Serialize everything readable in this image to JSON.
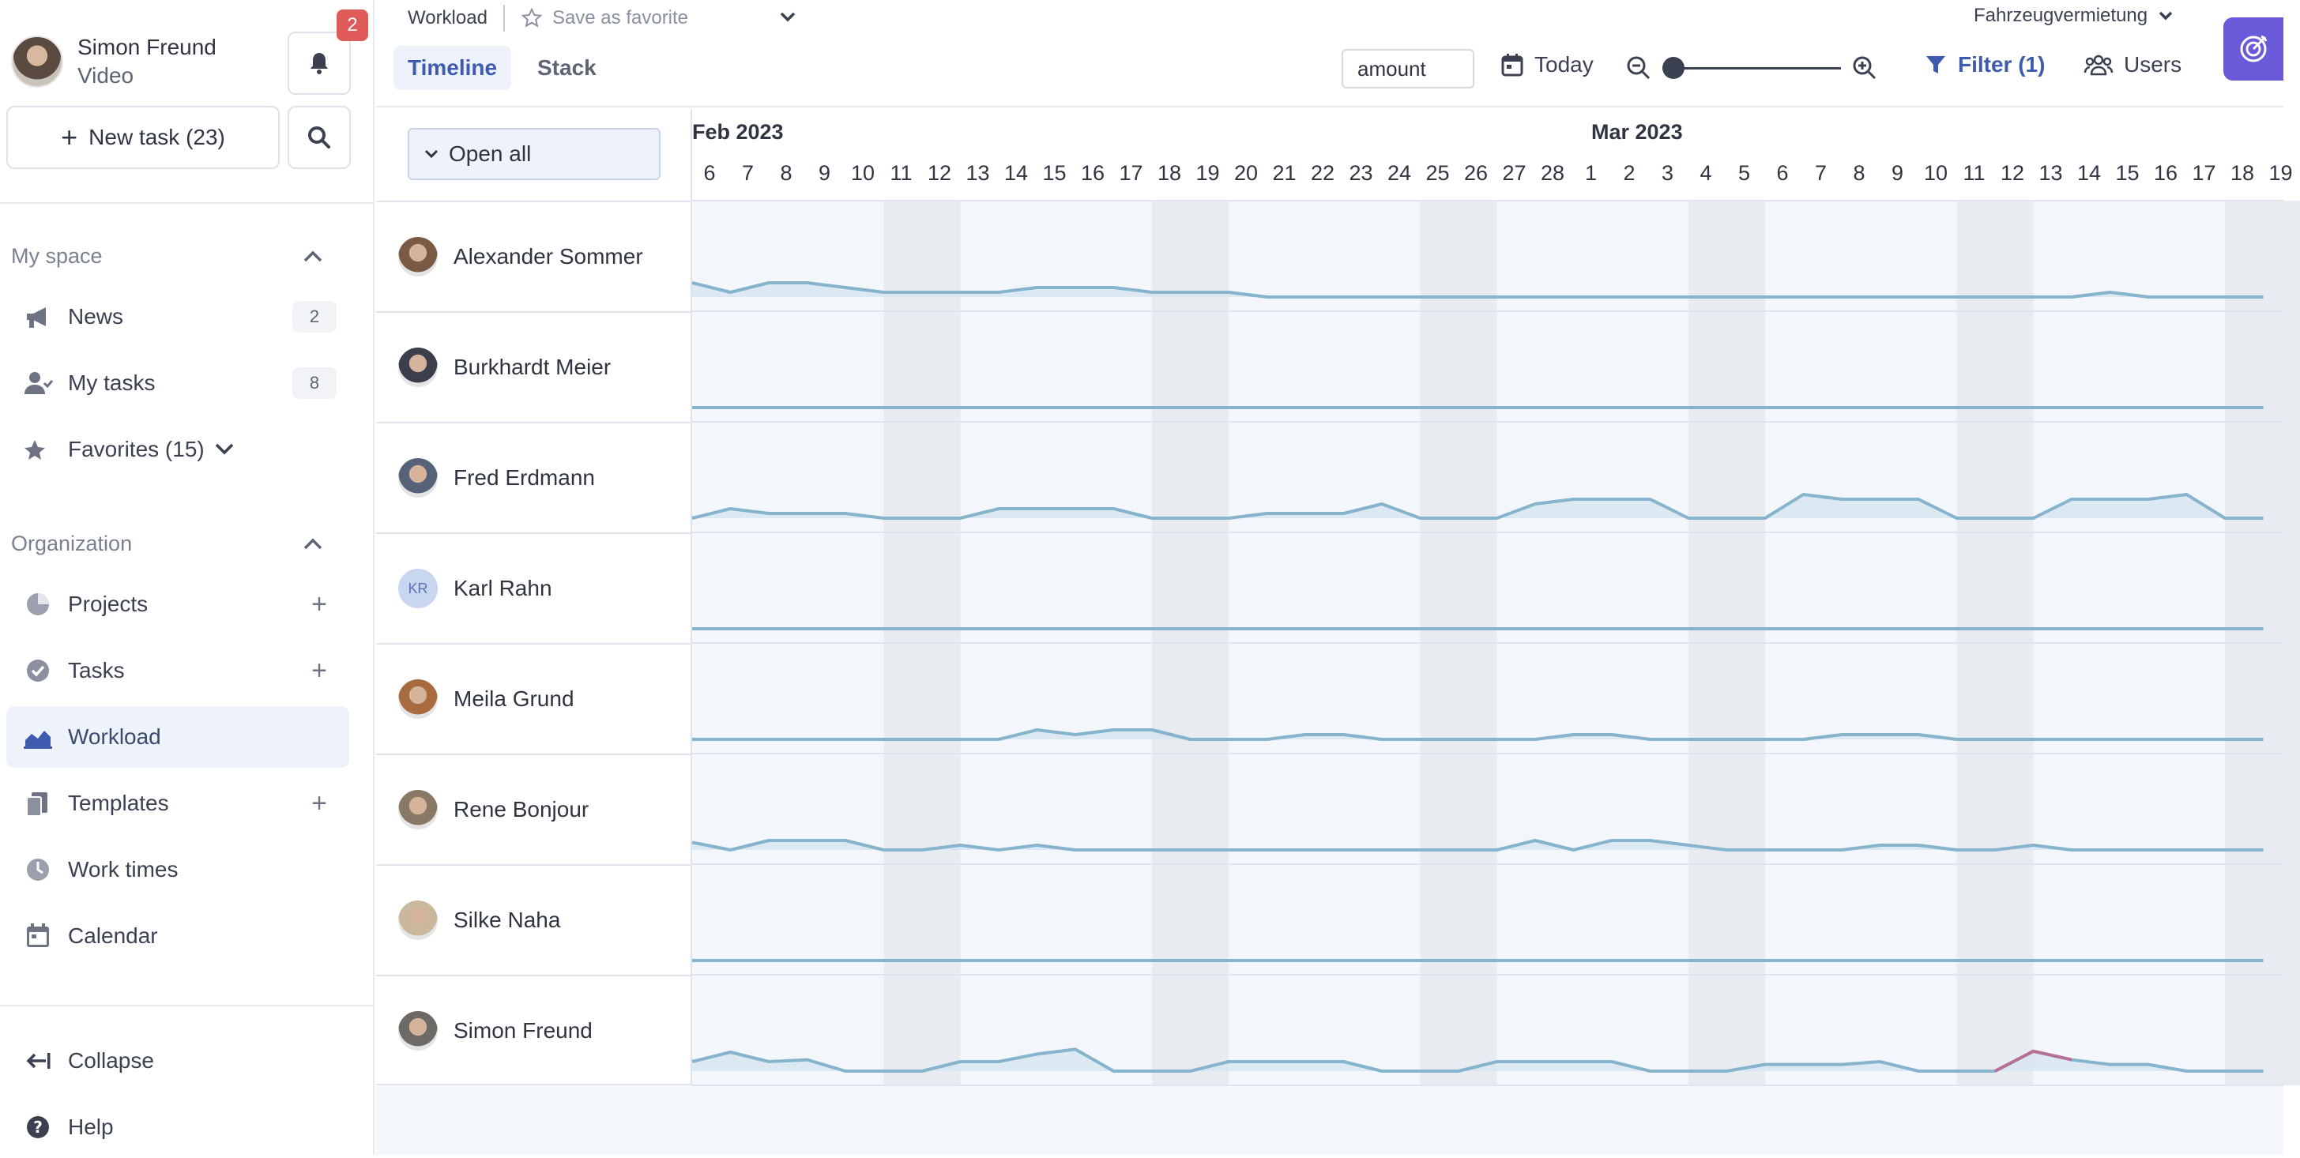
{
  "user": {
    "name": "Simon Freund",
    "subtitle": "Video",
    "notifications": "2"
  },
  "sidebar": {
    "new_task": "New task (23)",
    "my_space": {
      "title": "My space",
      "items": [
        {
          "label": "News",
          "count": "2",
          "icon": "megaphone-icon"
        },
        {
          "label": "My tasks",
          "count": "8",
          "icon": "user-check-icon"
        },
        {
          "label": "Favorites (15)",
          "icon": "star-icon"
        }
      ]
    },
    "organization": {
      "title": "Organization",
      "items": [
        {
          "label": "Projects",
          "icon": "pie-chart-icon",
          "addable": true
        },
        {
          "label": "Tasks",
          "icon": "check-circle-icon",
          "addable": true
        },
        {
          "label": "Workload",
          "icon": "area-chart-icon",
          "active": true
        },
        {
          "label": "Templates",
          "icon": "copy-icon",
          "addable": true
        },
        {
          "label": "Work times",
          "icon": "clock-icon"
        },
        {
          "label": "Calendar",
          "icon": "calendar-icon"
        }
      ]
    },
    "footer": [
      {
        "label": "Collapse",
        "icon": "collapse-arrow-icon"
      },
      {
        "label": "Help",
        "icon": "help-icon"
      }
    ]
  },
  "topbar": {
    "breadcrumb": "Workload",
    "favorite": "Save as favorite",
    "tabs": [
      {
        "label": "Timeline",
        "active": true
      },
      {
        "label": "Stack",
        "active": false
      }
    ],
    "company": "Fahrzeugvermietung",
    "amount_value": "amount",
    "today": "Today",
    "zoom_level": 0,
    "filter": "Filter (1)",
    "users": "Users"
  },
  "grid": {
    "open_all": "Open all",
    "months": [
      "Feb 2023",
      "Mar 2023"
    ],
    "days": [
      "6",
      "7",
      "8",
      "9",
      "10",
      "11",
      "12",
      "13",
      "14",
      "15",
      "16",
      "17",
      "18",
      "19",
      "20",
      "21",
      "22",
      "23",
      "24",
      "25",
      "26",
      "27",
      "28",
      "1",
      "2",
      "3",
      "4",
      "5",
      "6",
      "7",
      "8",
      "9",
      "10",
      "11",
      "12",
      "13",
      "14",
      "15",
      "16",
      "17",
      "18",
      "19"
    ],
    "weekend_indices": [
      5,
      6,
      12,
      13,
      19,
      20,
      26,
      27,
      33,
      34,
      40,
      41
    ],
    "rows": [
      {
        "name": "Alexander Sommer",
        "avatar": "photo",
        "load": [
          1.5,
          0.5,
          1.5,
          1.5,
          1,
          0.5,
          0.5,
          0.5,
          0.5,
          1,
          1,
          1,
          0.5,
          0.5,
          0.5,
          0,
          0,
          0,
          0,
          0,
          0,
          0,
          0,
          0,
          0,
          0,
          0,
          0,
          0,
          0,
          0,
          0,
          0,
          0,
          0,
          0,
          0,
          0.5,
          0,
          0,
          0,
          0
        ]
      },
      {
        "name": "Burkhardt Meier",
        "avatar": "photo",
        "load": [
          0,
          0,
          0,
          0,
          0,
          0,
          0,
          0,
          0,
          0,
          0,
          0,
          0,
          0,
          0,
          0,
          0,
          0,
          0,
          0,
          0,
          0,
          0,
          0,
          0,
          0,
          0,
          0,
          0,
          0,
          0,
          0,
          0,
          0,
          0,
          0,
          0,
          0,
          0,
          0,
          0,
          0
        ]
      },
      {
        "name": "Fred Erdmann",
        "avatar": "photo",
        "load": [
          0,
          1,
          0.5,
          0.5,
          0.5,
          0,
          0,
          0,
          1,
          1,
          1,
          1,
          0,
          0,
          0,
          0.5,
          0.5,
          0.5,
          1.5,
          0,
          0,
          0,
          1.5,
          2,
          2,
          2,
          0,
          0,
          0,
          2.5,
          2,
          2,
          2,
          0,
          0,
          0,
          2,
          2,
          2,
          2.5,
          0,
          0
        ]
      },
      {
        "name": "Karl Rahn",
        "avatar": "initials",
        "initials": "KR",
        "load": [
          0,
          0,
          0,
          0,
          0,
          0,
          0,
          0,
          0,
          0,
          0,
          0,
          0,
          0,
          0,
          0,
          0,
          0,
          0,
          0,
          0,
          0,
          0,
          0,
          0,
          0,
          0,
          0,
          0,
          0,
          0,
          0,
          0,
          0,
          0,
          0,
          0,
          0,
          0,
          0,
          0,
          0
        ]
      },
      {
        "name": "Meila Grund",
        "avatar": "photo",
        "load": [
          0,
          0,
          0,
          0,
          0,
          0,
          0,
          0,
          0,
          1,
          0.5,
          1,
          1,
          0,
          0,
          0,
          0.5,
          0.5,
          0,
          0,
          0,
          0,
          0,
          0.5,
          0.5,
          0,
          0,
          0,
          0,
          0,
          0.5,
          0.5,
          0.5,
          0,
          0,
          0,
          0,
          0,
          0,
          0,
          0,
          0
        ]
      },
      {
        "name": "Rene Bonjour",
        "avatar": "photo",
        "load": [
          0.8,
          0,
          1,
          1,
          1,
          0,
          0,
          0.5,
          0,
          0.5,
          0,
          0,
          0,
          0,
          0,
          0,
          0,
          0,
          0,
          0,
          0,
          0,
          1,
          0,
          1,
          1,
          0.5,
          0,
          0,
          0,
          0,
          0.5,
          0.5,
          0,
          0,
          0.5,
          0,
          0,
          0,
          0,
          0,
          0
        ]
      },
      {
        "name": "Silke Naha",
        "avatar": "photo",
        "load": [
          0,
          0,
          0,
          0,
          0,
          0,
          0,
          0,
          0,
          0,
          0,
          0,
          0,
          0,
          0,
          0,
          0,
          0,
          0,
          0,
          0,
          0,
          0,
          0,
          0,
          0,
          0,
          0,
          0,
          0,
          0,
          0,
          0,
          0,
          0,
          0,
          0,
          0,
          0,
          0,
          0,
          0
        ]
      },
      {
        "name": "Simon Freund",
        "avatar": "photo",
        "load": [
          1,
          2,
          1,
          1.2,
          0,
          0,
          0,
          1,
          1,
          1.8,
          2.3,
          0,
          0,
          0,
          1,
          1,
          1,
          1,
          0,
          0,
          0,
          1,
          1,
          1,
          1,
          0,
          0,
          0,
          0.7,
          0.7,
          0.7,
          1,
          0,
          0,
          0,
          2.1,
          1.2,
          0.7,
          0.7,
          0,
          0,
          0
        ],
        "overload_index": 35
      }
    ]
  },
  "colors": {
    "accent": "#3e5bb0",
    "line": "#86b4cc",
    "fill": "#d7e6f1",
    "weekend": "#e8ebef",
    "overload": "#b76e97",
    "brand": "#6a5ad9"
  }
}
